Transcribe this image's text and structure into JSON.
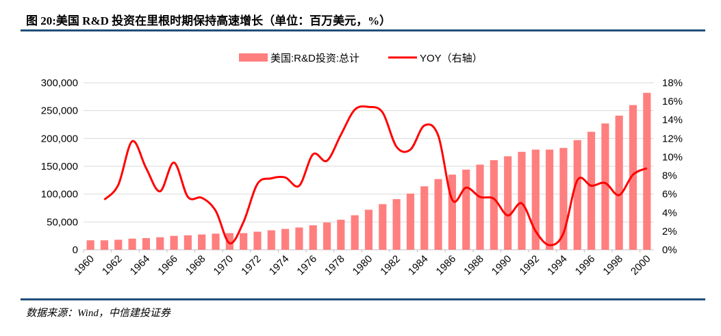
{
  "title": "图 20:美国 R&D 投资在里根时期保持高速增长（单位：百万美元，%）",
  "source": "数据来源：Wind，中信建投证券",
  "chart_data": {
    "type": "bar+line",
    "categories": [
      "1960",
      "1961",
      "1962",
      "1963",
      "1964",
      "1965",
      "1966",
      "1967",
      "1968",
      "1969",
      "1970",
      "1971",
      "1972",
      "1973",
      "1974",
      "1975",
      "1976",
      "1977",
      "1978",
      "1979",
      "1980",
      "1981",
      "1982",
      "1983",
      "1984",
      "1985",
      "1986",
      "1987",
      "1988",
      "1989",
      "1990",
      "1991",
      "1992",
      "1993",
      "1994",
      "1995",
      "1996",
      "1997",
      "1998",
      "1999",
      "2000"
    ],
    "x_tick_labels": [
      "1960",
      "1962",
      "1964",
      "1966",
      "1968",
      "1970",
      "1972",
      "1974",
      "1976",
      "1978",
      "1980",
      "1982",
      "1984",
      "1986",
      "1988",
      "1990",
      "1992",
      "1994",
      "1996",
      "1998",
      "2000"
    ],
    "series": [
      {
        "name": "美国:R&D投资:总计",
        "type": "bar",
        "axis": "left",
        "color": "#ff7f7f",
        "values": [
          17000,
          17000,
          18000,
          20000,
          21000,
          22500,
          25000,
          26000,
          27500,
          29000,
          30000,
          30000,
          32500,
          35000,
          37500,
          40000,
          44000,
          49000,
          54000,
          62000,
          72000,
          82000,
          91000,
          101000,
          114000,
          127000,
          135000,
          144000,
          153000,
          161000,
          168000,
          176000,
          180000,
          180000,
          183000,
          197000,
          212000,
          227000,
          241000,
          260000,
          282000
        ]
      },
      {
        "name": "YOY（右轴）",
        "type": "line",
        "axis": "right",
        "color": "#ff0000",
        "values": [
          null,
          5.4,
          7.0,
          11.7,
          8.8,
          6.3,
          9.4,
          5.7,
          5.6,
          4.2,
          0.7,
          3.0,
          7.1,
          7.7,
          7.8,
          6.9,
          10.3,
          9.6,
          12.4,
          15.1,
          15.4,
          14.8,
          11.1,
          10.8,
          13.4,
          12.3,
          5.4,
          6.7,
          5.7,
          5.5,
          3.7,
          5.0,
          2.0,
          0.5,
          1.8,
          7.5,
          6.9,
          7.2,
          5.9,
          8.1,
          8.8
        ]
      }
    ],
    "left_axis": {
      "range": [
        0,
        300000
      ],
      "ticks": [
        "0",
        "50,000",
        "100,000",
        "150,000",
        "200,000",
        "250,000",
        "300,000"
      ]
    },
    "right_axis": {
      "range": [
        0,
        18
      ],
      "ticks": [
        "0%",
        "2%",
        "4%",
        "6%",
        "8%",
        "10%",
        "12%",
        "14%",
        "16%",
        "18%"
      ]
    },
    "grid": true,
    "legend_placement": "top"
  }
}
